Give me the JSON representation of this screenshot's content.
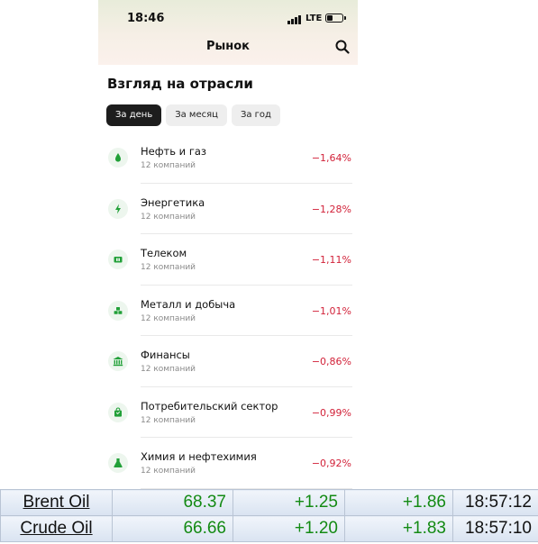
{
  "status_bar": {
    "time": "18:46",
    "network": "LTE"
  },
  "header": {
    "title": "Рынок",
    "search_icon": "search-icon"
  },
  "section": {
    "title": "Взгляд на отрасли"
  },
  "period_tabs": [
    {
      "label": "За день",
      "active": true
    },
    {
      "label": "За месяц",
      "active": false
    },
    {
      "label": "За год",
      "active": false
    }
  ],
  "sectors": [
    {
      "name": "Нефть и газ",
      "count": "12 компаний",
      "change": "−1,64%",
      "icon": "oil-drop-icon"
    },
    {
      "name": "Энергетика",
      "count": "12 компаний",
      "change": "−1,28%",
      "icon": "lightning-icon"
    },
    {
      "name": "Телеком",
      "count": "12 компаний",
      "change": "−1,11%",
      "icon": "sim-card-icon"
    },
    {
      "name": "Металл и добыча",
      "count": "12 компаний",
      "change": "−1,01%",
      "icon": "ore-icon"
    },
    {
      "name": "Финансы",
      "count": "12 компаний",
      "change": "−0,86%",
      "icon": "bank-icon"
    },
    {
      "name": "Потребительский сектор",
      "count": "12 компаний",
      "change": "−0,99%",
      "icon": "shopping-bag-icon"
    },
    {
      "name": "Химия и нефтехимия",
      "count": "12 компаний",
      "change": "−0,92%",
      "icon": "flask-icon"
    }
  ],
  "quotes": [
    {
      "name": "Brent Oil",
      "price": "68.37",
      "change1": "+1.25",
      "change2": "+1.86",
      "time": "18:57:12"
    },
    {
      "name": "Crude Oil",
      "price": "66.66",
      "change1": "+1.20",
      "change2": "+1.83",
      "time": "18:57:10"
    }
  ],
  "colors": {
    "negative": "#d2233a",
    "positive": "#138a13",
    "accent_green": "#21a038",
    "chip_active": "#1d1d1d"
  }
}
